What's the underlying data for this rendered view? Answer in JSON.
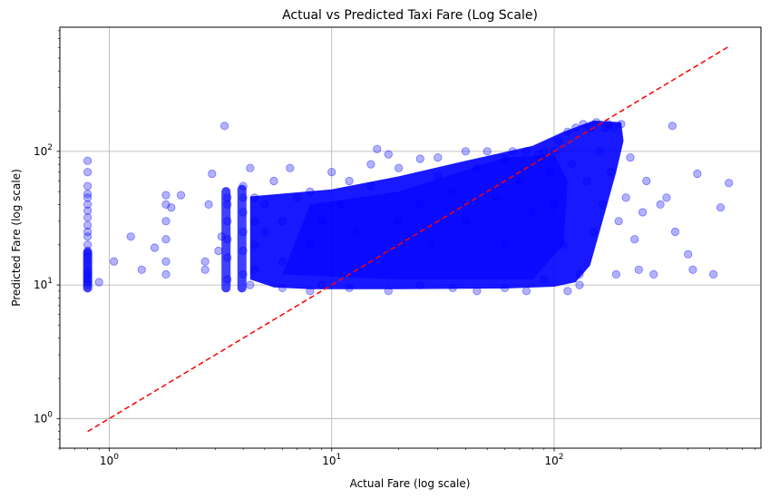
{
  "chart_data": {
    "type": "scatter",
    "title": "Actual vs Predicted Taxi Fare (Log Scale)",
    "xlabel": "Actual Fare (log scale)",
    "ylabel": "Predicted Fare (log scale)",
    "xscale": "log",
    "yscale": "log",
    "xlim": [
      0.6,
      850
    ],
    "ylim": [
      0.6,
      850
    ],
    "x_ticks": [
      {
        "base": "10",
        "exp": "0",
        "value": 1
      },
      {
        "base": "10",
        "exp": "1",
        "value": 10
      },
      {
        "base": "10",
        "exp": "2",
        "value": 100
      }
    ],
    "y_ticks": [
      {
        "base": "10",
        "exp": "0",
        "value": 1
      },
      {
        "base": "10",
        "exp": "1",
        "value": 10
      },
      {
        "base": "10",
        "exp": "2",
        "value": 100
      }
    ],
    "grid": true,
    "point_color": "#0000ff",
    "point_alpha": 0.3,
    "reference_line": {
      "style": "dashed",
      "color": "#ff0000",
      "points": [
        [
          0.8,
          0.8
        ],
        [
          610,
          610
        ]
      ]
    },
    "points": [
      [
        0.8,
        10
      ],
      [
        0.8,
        10.5
      ],
      [
        0.8,
        11
      ],
      [
        0.8,
        11.5
      ],
      [
        0.8,
        12
      ],
      [
        0.8,
        12.5
      ],
      [
        0.8,
        13
      ],
      [
        0.8,
        14
      ],
      [
        0.8,
        15
      ],
      [
        0.8,
        16
      ],
      [
        0.8,
        17
      ],
      [
        0.8,
        18
      ],
      [
        0.8,
        20
      ],
      [
        0.8,
        23
      ],
      [
        0.8,
        25
      ],
      [
        0.8,
        28
      ],
      [
        0.8,
        32
      ],
      [
        0.8,
        36
      ],
      [
        0.8,
        40
      ],
      [
        0.8,
        45
      ],
      [
        0.8,
        48
      ],
      [
        0.8,
        55
      ],
      [
        0.8,
        70
      ],
      [
        0.8,
        85
      ],
      [
        0.9,
        10.5
      ],
      [
        1.05,
        15
      ],
      [
        1.25,
        23
      ],
      [
        1.4,
        13
      ],
      [
        1.6,
        19
      ],
      [
        1.8,
        12
      ],
      [
        1.8,
        15
      ],
      [
        1.8,
        22
      ],
      [
        1.8,
        30
      ],
      [
        1.8,
        40
      ],
      [
        1.8,
        47
      ],
      [
        1.9,
        38
      ],
      [
        2.1,
        47
      ],
      [
        2.7,
        13
      ],
      [
        2.7,
        15
      ],
      [
        2.8,
        40
      ],
      [
        2.9,
        68
      ],
      [
        3.1,
        18
      ],
      [
        3.2,
        23
      ],
      [
        3.3,
        155
      ],
      [
        3.4,
        11
      ],
      [
        3.4,
        16
      ],
      [
        3.4,
        22
      ],
      [
        3.4,
        30
      ],
      [
        3.4,
        40
      ],
      [
        3.4,
        45
      ],
      [
        4.0,
        12
      ],
      [
        4.0,
        18
      ],
      [
        4.0,
        25
      ],
      [
        4.0,
        35
      ],
      [
        4.0,
        45
      ],
      [
        4.0,
        55
      ],
      [
        4.3,
        75
      ],
      [
        4.5,
        13
      ],
      [
        4.5,
        20
      ],
      [
        4.5,
        30
      ],
      [
        4.5,
        45
      ],
      [
        5,
        25
      ],
      [
        5,
        40
      ],
      [
        5.5,
        60
      ],
      [
        6,
        15
      ],
      [
        6,
        30
      ],
      [
        6.5,
        75
      ],
      [
        7,
        45
      ],
      [
        8,
        20
      ],
      [
        8,
        50
      ],
      [
        9,
        10
      ],
      [
        9,
        30
      ],
      [
        10,
        70
      ],
      [
        11,
        40
      ],
      [
        12,
        60
      ],
      [
        13,
        25
      ],
      [
        15,
        55
      ],
      [
        15,
        80
      ],
      [
        16,
        104
      ],
      [
        18,
        95
      ],
      [
        20,
        30
      ],
      [
        20,
        75
      ],
      [
        25,
        40
      ],
      [
        25,
        88
      ],
      [
        28,
        20
      ],
      [
        30,
        65
      ],
      [
        30,
        90
      ],
      [
        35,
        50
      ],
      [
        40,
        100
      ],
      [
        40,
        30
      ],
      [
        45,
        75
      ],
      [
        50,
        100
      ],
      [
        55,
        45
      ],
      [
        60,
        20
      ],
      [
        60,
        88
      ],
      [
        65,
        100
      ],
      [
        70,
        60
      ],
      [
        75,
        100
      ],
      [
        80,
        35
      ],
      [
        85,
        95
      ],
      [
        90,
        100
      ],
      [
        95,
        70
      ],
      [
        100,
        100
      ],
      [
        100,
        40
      ],
      [
        105,
        120
      ],
      [
        110,
        20
      ],
      [
        115,
        140
      ],
      [
        120,
        80
      ],
      [
        125,
        150
      ],
      [
        130,
        12
      ],
      [
        135,
        160
      ],
      [
        140,
        60
      ],
      [
        145,
        150
      ],
      [
        150,
        25
      ],
      [
        155,
        165
      ],
      [
        160,
        100
      ],
      [
        165,
        40
      ],
      [
        170,
        150
      ],
      [
        175,
        160
      ],
      [
        180,
        70
      ],
      [
        185,
        150
      ],
      [
        190,
        12
      ],
      [
        195,
        30
      ],
      [
        200,
        160
      ],
      [
        210,
        45
      ],
      [
        220,
        90
      ],
      [
        230,
        22
      ],
      [
        240,
        13
      ],
      [
        250,
        35
      ],
      [
        260,
        60
      ],
      [
        280,
        12
      ],
      [
        300,
        40
      ],
      [
        320,
        45
      ],
      [
        340,
        155
      ],
      [
        350,
        25
      ],
      [
        400,
        17
      ],
      [
        420,
        13
      ],
      [
        440,
        68
      ],
      [
        520,
        12
      ],
      [
        560,
        38
      ],
      [
        610,
        58
      ],
      [
        130,
        10
      ],
      [
        115,
        9
      ],
      [
        90,
        11
      ],
      [
        75,
        9
      ],
      [
        60,
        9.5
      ],
      [
        45,
        9
      ],
      [
        35,
        9.5
      ],
      [
        25,
        10
      ],
      [
        18,
        9
      ],
      [
        12,
        9.5
      ],
      [
        8,
        9
      ],
      [
        6,
        9.5
      ],
      [
        4.3,
        10
      ]
    ]
  }
}
